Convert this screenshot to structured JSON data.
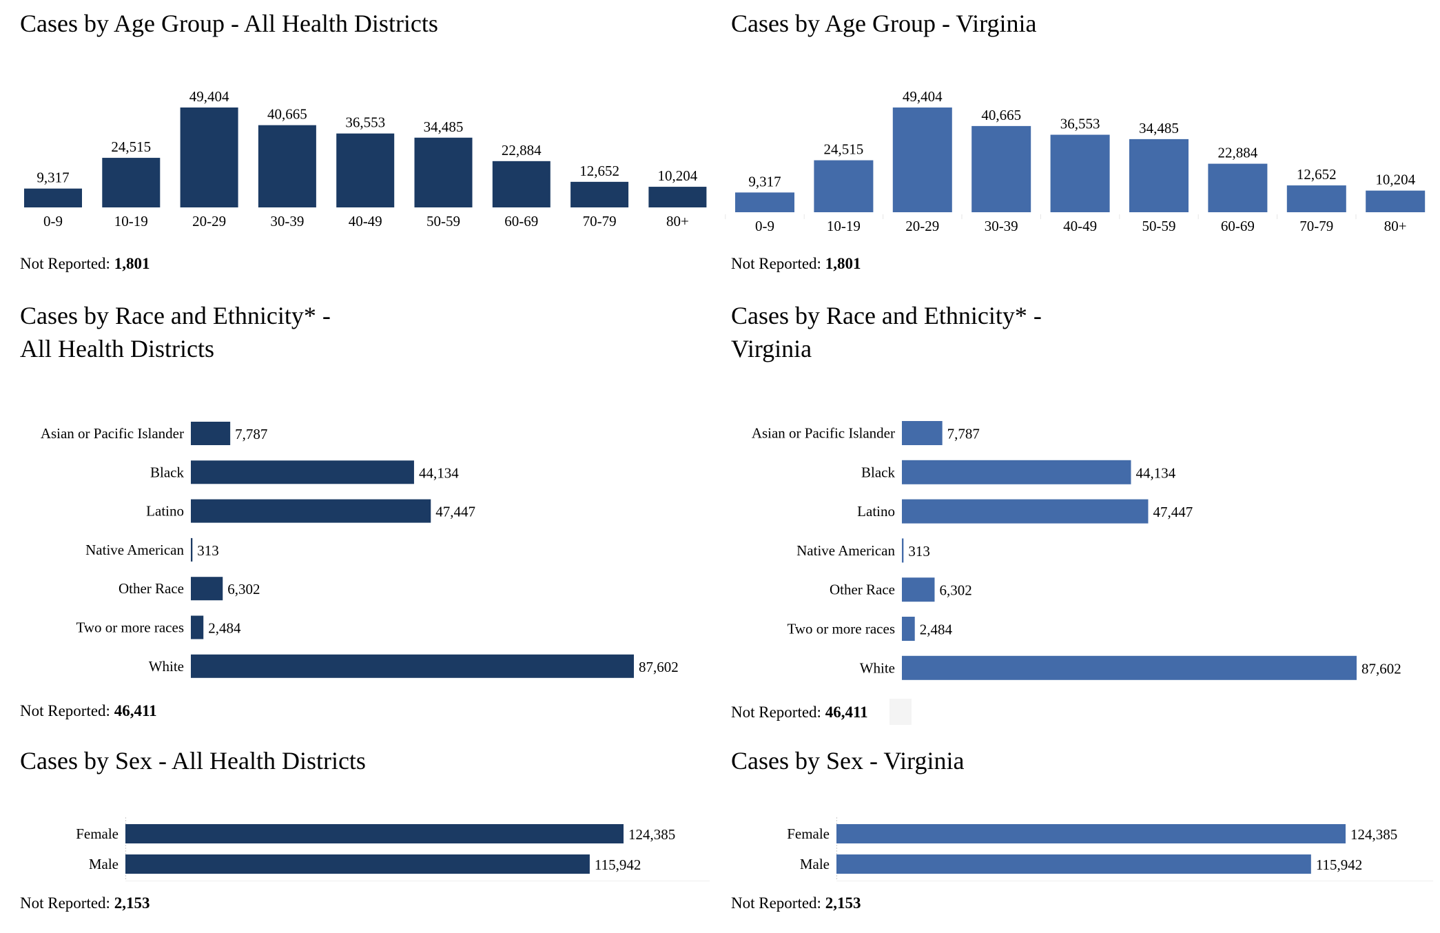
{
  "colors": {
    "dark": "#1b3a63",
    "blue": "#436ba9",
    "tick": "#e6e6e6",
    "graybox": "#f4f4f4"
  },
  "not_reported_label": "Not Reported:",
  "panels": {
    "left": {
      "age_title": "Cases by Age Group - All Health Districts",
      "age_not_reported": "1,801",
      "race_title_line1": "Cases by Race and Ethnicity* -",
      "race_title_line2": "All Health Districts",
      "race_not_reported": "46,411",
      "sex_title": "Cases by Sex - All Health Districts",
      "sex_not_reported": "2,153"
    },
    "right": {
      "age_title": "Cases by Age Group - Virginia",
      "age_not_reported": "1,801",
      "race_title_line1": "Cases by Race and Ethnicity* -",
      "race_title_line2": "Virginia",
      "race_not_reported": "46,411",
      "sex_title": "Cases by Sex - Virginia",
      "sex_not_reported": "2,153"
    }
  },
  "chart_data": [
    {
      "id": "age-all-districts",
      "type": "bar",
      "title": "Cases by Age Group - All Health Districts",
      "categories": [
        "0-9",
        "10-19",
        "20-29",
        "30-39",
        "40-49",
        "50-59",
        "60-69",
        "70-79",
        "80+"
      ],
      "values": [
        9317,
        24515,
        49404,
        40665,
        36553,
        34485,
        22884,
        12652,
        10204
      ],
      "labels": [
        "9,317",
        "24,515",
        "49,404",
        "40,665",
        "36,553",
        "34,485",
        "22,884",
        "12,652",
        "10,204"
      ],
      "color": "#1b3a63",
      "xlabel": "",
      "ylabel": "",
      "grid": false,
      "not_reported": 1801
    },
    {
      "id": "age-virginia",
      "type": "bar",
      "title": "Cases by Age Group - Virginia",
      "categories": [
        "0-9",
        "10-19",
        "20-29",
        "30-39",
        "40-49",
        "50-59",
        "60-69",
        "70-79",
        "80+"
      ],
      "values": [
        9317,
        24515,
        49404,
        40665,
        36553,
        34485,
        22884,
        12652,
        10204
      ],
      "labels": [
        "9,317",
        "24,515",
        "49,404",
        "40,665",
        "36,553",
        "34,485",
        "22,884",
        "12,652",
        "10,204"
      ],
      "color": "#436ba9",
      "xlabel": "",
      "ylabel": "",
      "grid": false,
      "not_reported": 1801
    },
    {
      "id": "race-all-districts",
      "type": "bar",
      "orientation": "horizontal",
      "title": "Cases by Race and Ethnicity* - All Health Districts",
      "categories": [
        "Asian or Pacific Islander",
        "Black",
        "Latino",
        "Native American",
        "Other Race",
        "Two or more races",
        "White"
      ],
      "values": [
        7787,
        44134,
        47447,
        313,
        6302,
        2484,
        87602
      ],
      "labels": [
        "7,787",
        "44,134",
        "47,447",
        "313",
        "6,302",
        "2,484",
        "87,602"
      ],
      "color": "#1b3a63",
      "not_reported": 46411
    },
    {
      "id": "race-virginia",
      "type": "bar",
      "orientation": "horizontal",
      "title": "Cases by Race and Ethnicity* - Virginia",
      "categories": [
        "Asian or Pacific Islander",
        "Black",
        "Latino",
        "Native American",
        "Other Race",
        "Two or more races",
        "White"
      ],
      "values": [
        7787,
        44134,
        47447,
        313,
        6302,
        2484,
        87602
      ],
      "labels": [
        "7,787",
        "44,134",
        "47,447",
        "313",
        "6,302",
        "2,484",
        "87,602"
      ],
      "color": "#436ba9",
      "not_reported": 46411
    },
    {
      "id": "sex-all-districts",
      "type": "bar",
      "orientation": "horizontal",
      "title": "Cases by Sex - All Health Districts",
      "categories": [
        "Female",
        "Male"
      ],
      "values": [
        124385,
        115942
      ],
      "labels": [
        "124,385",
        "115,942"
      ],
      "color": "#1b3a63",
      "not_reported": 2153
    },
    {
      "id": "sex-virginia",
      "type": "bar",
      "orientation": "horizontal",
      "title": "Cases by Sex - Virginia",
      "categories": [
        "Female",
        "Male"
      ],
      "values": [
        124385,
        115942
      ],
      "labels": [
        "124,385",
        "115,942"
      ],
      "color": "#436ba9",
      "not_reported": 2153
    }
  ]
}
